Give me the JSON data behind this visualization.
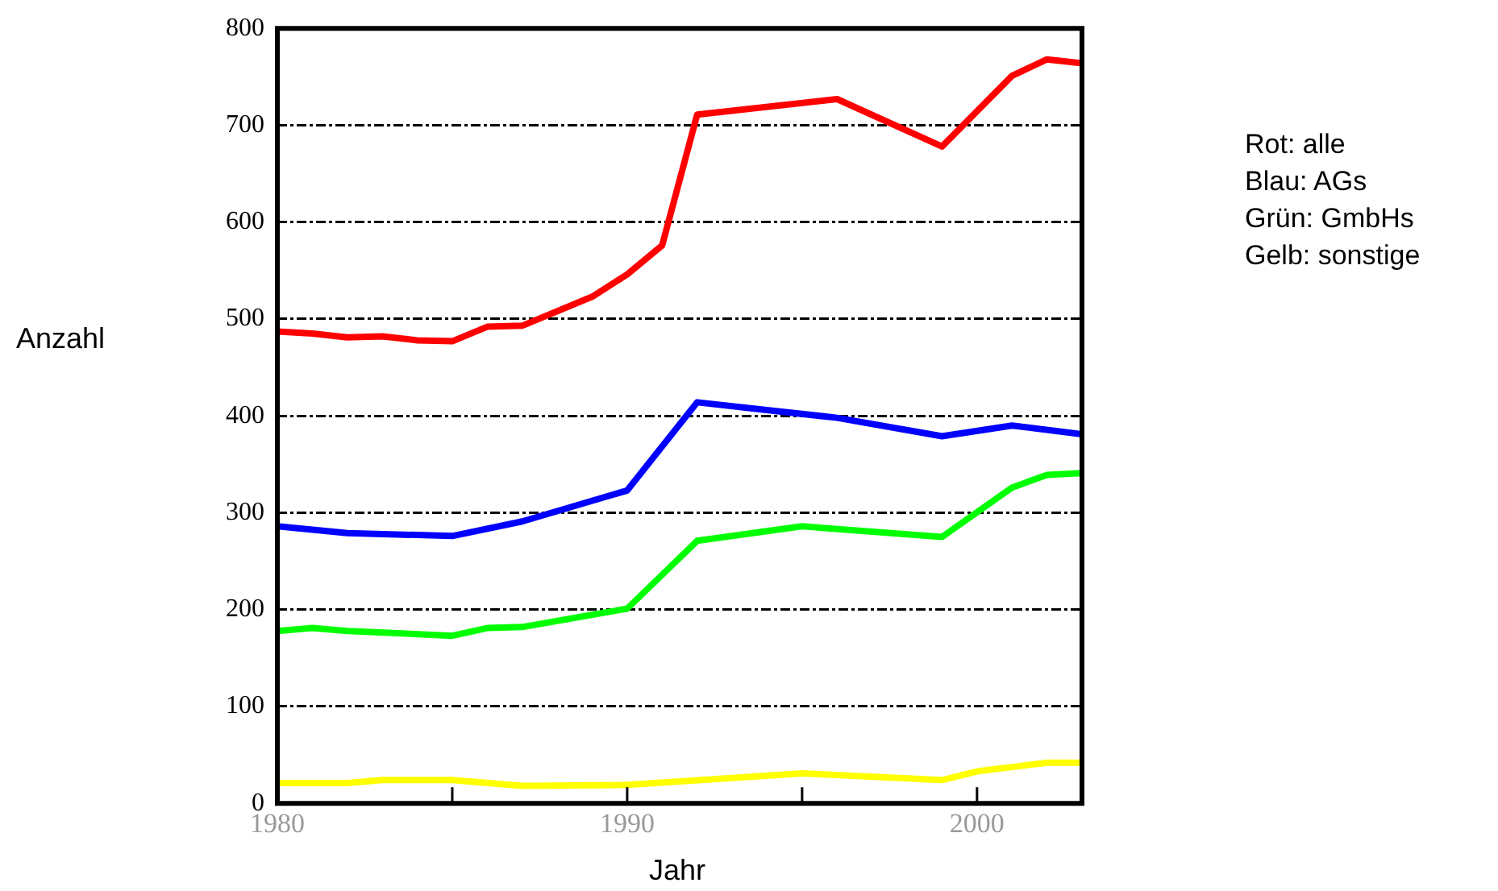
{
  "chart_data": {
    "type": "line",
    "xlabel": "Jahr",
    "ylabel": "Anzahl",
    "annotations": [
      "Rot: alle",
      "Blau: AGs",
      "Grün: GmbHs",
      "Gelb: sonstige"
    ],
    "xlim": [
      1980,
      2003
    ],
    "xticks": [
      1980,
      {
        "value": 1985,
        "label": null
      },
      1990,
      {
        "value": 1995,
        "label": null
      },
      2000
    ],
    "ylim": [
      0,
      800
    ],
    "yticks": [
      0,
      100,
      200,
      300,
      400,
      500,
      600,
      700,
      800
    ],
    "grid": "y",
    "legend": false,
    "marker": "none",
    "line_style": "solid",
    "series": [
      {
        "color": "#ff0000",
        "x": [
          1980,
          1981,
          1982,
          1983,
          1984,
          1985,
          1986,
          1987,
          1989,
          1990,
          1991,
          1992,
          1996,
          1999,
          2001,
          2002,
          2003
        ],
        "values": [
          487,
          485,
          481,
          482,
          478,
          477,
          492,
          493,
          523,
          546,
          576,
          711,
          727,
          678,
          751,
          768,
          764
        ]
      },
      {
        "color": "#0000ff",
        "x": [
          1980,
          1982,
          1985,
          1987,
          1990,
          1992,
          1996,
          1999,
          2001,
          2003
        ],
        "values": [
          286,
          279,
          276,
          291,
          323,
          414,
          398,
          379,
          390,
          381
        ]
      },
      {
        "color": "#00ff00",
        "x": [
          1980,
          1981,
          1982,
          1985,
          1986,
          1987,
          1990,
          1992,
          1995,
          1999,
          2001,
          2002,
          2003
        ],
        "values": [
          178,
          181,
          178,
          173,
          181,
          182,
          201,
          271,
          286,
          275,
          326,
          339,
          341
        ]
      },
      {
        "color": "#ffff00",
        "x": [
          1980,
          1982,
          1983,
          1985,
          1987,
          1990,
          1995,
          1999,
          2000,
          2002,
          2003
        ],
        "values": [
          21,
          21,
          24,
          24,
          18,
          19,
          31,
          24,
          33,
          42,
          42
        ]
      }
    ]
  }
}
